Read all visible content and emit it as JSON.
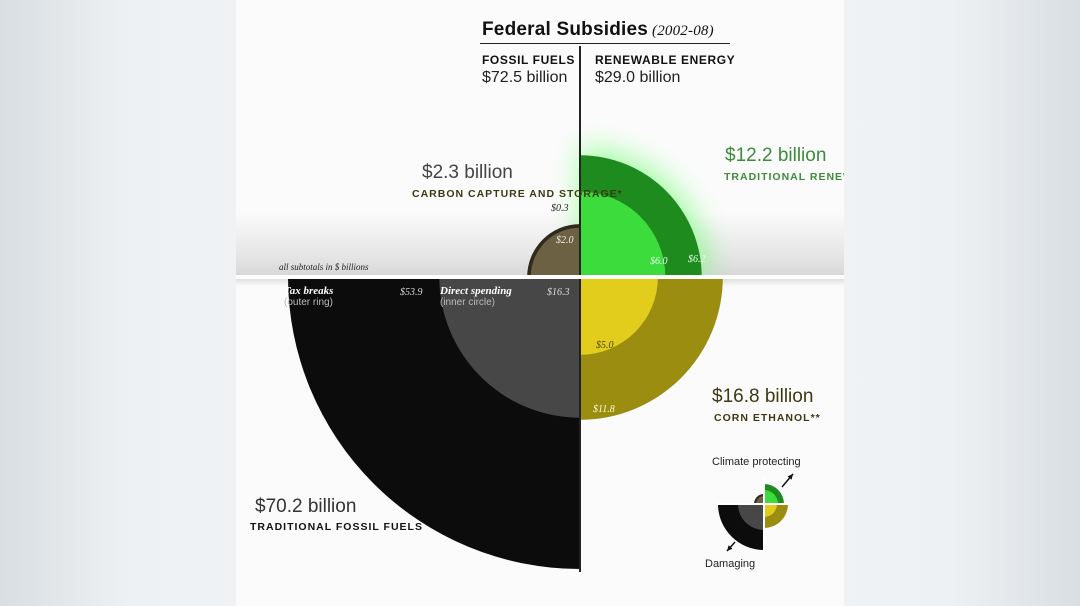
{
  "title": "Federal Subsidies",
  "years": "(2002-08)",
  "columns": {
    "fossil": {
      "header": "FOSSIL FUELS",
      "amount": "$72.5 billion"
    },
    "renewable": {
      "header": "RENEWABLE ENERGY",
      "amount": "$29.0 billion"
    }
  },
  "note": "all subtotals in $ billions",
  "ring_legend": {
    "outer_title": "Tax breaks",
    "outer_sub": "(outer ring)",
    "inner_title": "Direct spending",
    "inner_sub": "(inner circle)"
  },
  "legend": {
    "top": "Climate protecting",
    "bottom": "Damaging"
  },
  "colors": {
    "fossil_outer": "#0c0c0c",
    "fossil_inner": "#474747",
    "ccs_outer": "#2e2a1c",
    "ccs_inner": "#6c6143",
    "renew_outer": "#1d8b1d",
    "renew_inner": "#3ddc3d",
    "ethanol_outer": "#9a8d10",
    "ethanol_inner": "#e2cc1c",
    "green_text": "#3c8c3c",
    "olive_text": "#3d3a12"
  },
  "chart_data": {
    "type": "pie",
    "title": "Federal Subsidies (2002-08)",
    "unit": "$ billions",
    "segments": [
      {
        "category": "Traditional fossil fuels",
        "total_label": "$70.2 billion",
        "name_label": "TRADITIONAL FOSSIL FUELS",
        "total": 70.2,
        "tax_breaks": 53.9,
        "direct_spending": 16.3,
        "tax_label": "$53.9",
        "direct_label": "$16.3"
      },
      {
        "category": "Carbon capture and storage",
        "total_label": "$2.3 billion",
        "name_label": "CARBON CAPTURE AND STORAGE*",
        "total": 2.3,
        "tax_breaks": 0.3,
        "direct_spending": 2.0,
        "tax_label": "$0.3",
        "direct_label": "$2.0"
      },
      {
        "category": "Traditional renewables",
        "total_label": "$12.2 billion",
        "name_label": "TRADITIONAL RENEWABLES",
        "total": 12.2,
        "tax_breaks": 6.2,
        "direct_spending": 6.0,
        "tax_label": "$6.2",
        "direct_label": "$6.0"
      },
      {
        "category": "Corn ethanol",
        "total_label": "$16.8 billion",
        "name_label": "CORN ETHANOL**",
        "total": 16.8,
        "tax_breaks": 11.8,
        "direct_spending": 5.0,
        "tax_label": "$11.8",
        "direct_label": "$5.0"
      }
    ]
  }
}
